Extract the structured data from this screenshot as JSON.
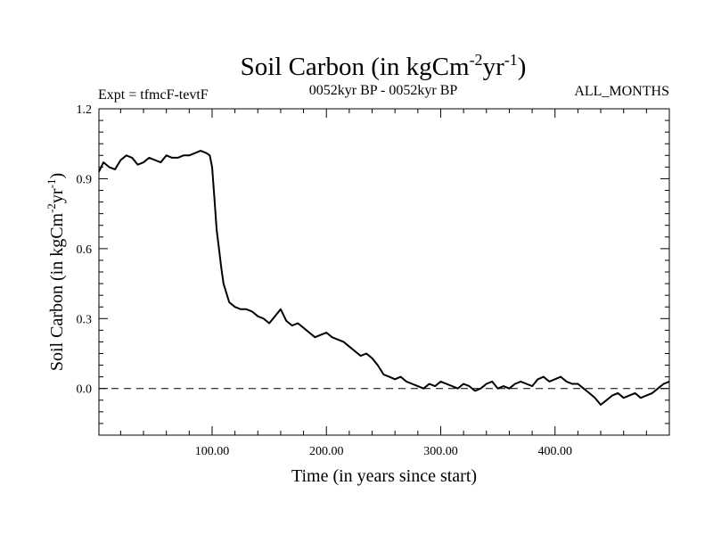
{
  "chart_data": {
    "type": "line",
    "title_main": "Soil Carbon (in kgCm",
    "title_exp1": "-2",
    "title_mid": "yr",
    "title_exp2": "-1",
    "title_close": ")",
    "subtitle_left": "Expt = tfmcF-tevtF",
    "subtitle_center": "0052kyr BP - 0052kyr BP",
    "subtitle_right": "ALL_MONTHS",
    "xlabel": "Time (in years since start)",
    "ylabel_main": "Soil Carbon (in kgCm",
    "ylabel_exp1": "-2",
    "ylabel_mid": "yr",
    "ylabel_exp2": "-1",
    "ylabel_close": ")",
    "xlim": [
      1,
      500
    ],
    "ylim": [
      -0.2,
      1.2
    ],
    "x_ticks": [
      100,
      200,
      300,
      400
    ],
    "x_tick_labels": [
      "100.00",
      "200.00",
      "300.00",
      "400.00"
    ],
    "y_ticks": [
      0.0,
      0.3,
      0.6,
      0.9,
      1.2
    ],
    "y_tick_labels": [
      "0.0",
      "0.3",
      "0.6",
      "0.9",
      "1.2"
    ],
    "reference_line": {
      "y": 0.0,
      "style": "dashed"
    },
    "grid": false,
    "series": [
      {
        "x": [
          1,
          5,
          10,
          15,
          20,
          25,
          30,
          35,
          40,
          45,
          50,
          55,
          60,
          65,
          70,
          75,
          80,
          85,
          90,
          95,
          98,
          100,
          102,
          104,
          106,
          108,
          110,
          115,
          120,
          125,
          130,
          135,
          140,
          145,
          150,
          155,
          160,
          165,
          170,
          175,
          180,
          185,
          190,
          195,
          200,
          205,
          210,
          215,
          220,
          225,
          230,
          235,
          240,
          245,
          250,
          255,
          260,
          265,
          270,
          275,
          280,
          285,
          290,
          295,
          300,
          305,
          310,
          315,
          320,
          325,
          330,
          335,
          340,
          345,
          350,
          355,
          360,
          365,
          370,
          375,
          380,
          385,
          390,
          395,
          400,
          405,
          410,
          415,
          420,
          425,
          430,
          435,
          440,
          445,
          450,
          455,
          460,
          465,
          470,
          475,
          480,
          485,
          490,
          495,
          500
        ],
        "y": [
          0.93,
          0.97,
          0.95,
          0.94,
          0.98,
          1.0,
          0.99,
          0.96,
          0.97,
          0.99,
          0.98,
          0.97,
          1.0,
          0.99,
          0.99,
          1.0,
          1.0,
          1.01,
          1.02,
          1.01,
          1.0,
          0.95,
          0.82,
          0.68,
          0.6,
          0.52,
          0.45,
          0.37,
          0.35,
          0.34,
          0.34,
          0.33,
          0.31,
          0.3,
          0.28,
          0.31,
          0.34,
          0.29,
          0.27,
          0.28,
          0.26,
          0.24,
          0.22,
          0.23,
          0.24,
          0.22,
          0.21,
          0.2,
          0.18,
          0.16,
          0.14,
          0.15,
          0.13,
          0.1,
          0.06,
          0.05,
          0.04,
          0.05,
          0.03,
          0.02,
          0.01,
          0.0,
          0.02,
          0.01,
          0.03,
          0.02,
          0.01,
          0.0,
          0.02,
          0.01,
          -0.01,
          0.0,
          0.02,
          0.03,
          0.0,
          0.01,
          0.0,
          0.02,
          0.03,
          0.02,
          0.01,
          0.04,
          0.05,
          0.03,
          0.04,
          0.05,
          0.03,
          0.02,
          0.02,
          0.0,
          -0.02,
          -0.04,
          -0.07,
          -0.05,
          -0.03,
          -0.02,
          -0.04,
          -0.03,
          -0.02,
          -0.04,
          -0.03,
          -0.02,
          0.0,
          0.02,
          0.03
        ]
      }
    ]
  }
}
